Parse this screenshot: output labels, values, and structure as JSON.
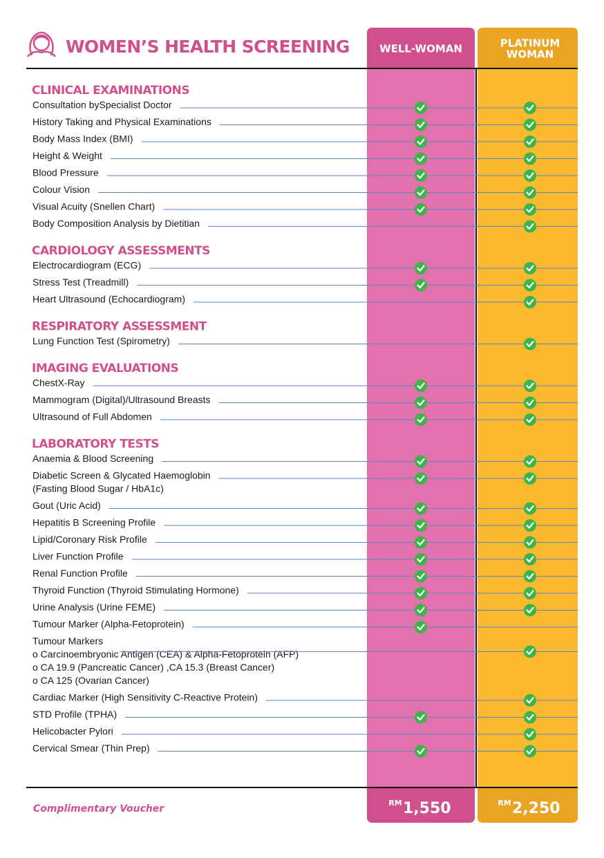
{
  "header": {
    "title": "WOMEN’S HEALTH SCREENING",
    "columns": [
      [
        "WELL-WOMAN"
      ],
      [
        "PLATINUM",
        "WOMAN"
      ]
    ]
  },
  "sections": [
    {
      "title": "CLINICAL EXAMINATIONS",
      "items": [
        {
          "label": "Consultation bySpecialist Doctor",
          "well": true,
          "platinum": true
        },
        {
          "label": "History Taking and Physical Examinations",
          "well": true,
          "platinum": true
        },
        {
          "label": "Body Mass Index (BMI)",
          "well": true,
          "platinum": true
        },
        {
          "label": "Height & Weight",
          "well": true,
          "platinum": true
        },
        {
          "label": "Blood Pressure",
          "well": true,
          "platinum": true
        },
        {
          "label": "Colour Vision",
          "well": true,
          "platinum": true
        },
        {
          "label": "Visual Acuity (Snellen Chart)",
          "well": true,
          "platinum": true
        },
        {
          "label": "Body Composition Analysis by Dietitian",
          "well": false,
          "platinum": true
        }
      ]
    },
    {
      "title": "CARDIOLOGY ASSESSMENTS",
      "items": [
        {
          "label": "Electrocardiogram (ECG)",
          "well": true,
          "platinum": true
        },
        {
          "label": "Stress Test (Treadmill)",
          "well": true,
          "platinum": true
        },
        {
          "label": "Heart Ultrasound (Echocardiogram)",
          "well": false,
          "platinum": true
        }
      ]
    },
    {
      "title": "RESPIRATORY ASSESSMENT",
      "items": [
        {
          "label": "Lung Function Test (Spirometry)",
          "well": false,
          "platinum": true
        }
      ]
    },
    {
      "title": "IMAGING EVALUATIONS",
      "items": [
        {
          "label": "ChestX-Ray",
          "well": true,
          "platinum": true
        },
        {
          "label": "Mammogram (Digital)/Ultrasound Breasts",
          "well": true,
          "platinum": true
        },
        {
          "label": "Ultrasound of Full Abdomen",
          "well": true,
          "platinum": true
        }
      ]
    },
    {
      "title": "LABORATORY TESTS",
      "items": [
        {
          "label": "Anaemia & Blood Screening",
          "well": true,
          "platinum": true
        },
        {
          "label": "Diabetic Screen & Glycated Haemoglobin",
          "details": [
            "(Fasting Blood Sugar / HbA1c)"
          ],
          "well": true,
          "platinum": true
        },
        {
          "label": "Gout (Uric Acid)",
          "well": true,
          "platinum": true
        },
        {
          "label": "Hepatitis B Screening Profile",
          "well": true,
          "platinum": true
        },
        {
          "label": "Lipid/Coronary Risk Profile",
          "well": true,
          "platinum": true
        },
        {
          "label": "Liver Function Profile",
          "well": true,
          "platinum": true
        },
        {
          "label": "Renal Function Profile",
          "well": true,
          "platinum": true
        },
        {
          "label": "Thyroid Function (Thyroid Stimulating Hormone)",
          "well": true,
          "platinum": true
        },
        {
          "label": "Urine Analysis (Urine FEME)",
          "well": true,
          "platinum": true
        },
        {
          "label": "Tumour Marker (Alpha-Fetoprotein)",
          "well": true,
          "platinum": false
        },
        {
          "label": "Tumour Markers",
          "details": [
            "o Carcinoembryonic Antigen (CEA) & Alpha-Fetoprotein (AFP)",
            "o CA 19.9 (Pancreatic Cancer) ,CA 15.3 (Breast Cancer)",
            "o CA 125 (Ovarian Cancer)"
          ],
          "well": false,
          "platinum": true
        },
        {
          "label": "Cardiac Marker (High Sensitivity C-Reactive Protein)",
          "well": false,
          "platinum": true
        },
        {
          "label": "STD Profile (TPHA)",
          "well": true,
          "platinum": true
        },
        {
          "label": "Helicobacter Pylori",
          "well": false,
          "platinum": true
        },
        {
          "label": "Cervical Smear (Thin Prep)",
          "well": true,
          "platinum": true
        }
      ]
    }
  ],
  "footer": {
    "note": "Complimentary Voucher",
    "prices": [
      {
        "currency": "RM",
        "amount": "1,550"
      },
      {
        "currency": "RM",
        "amount": "2,250"
      }
    ]
  }
}
